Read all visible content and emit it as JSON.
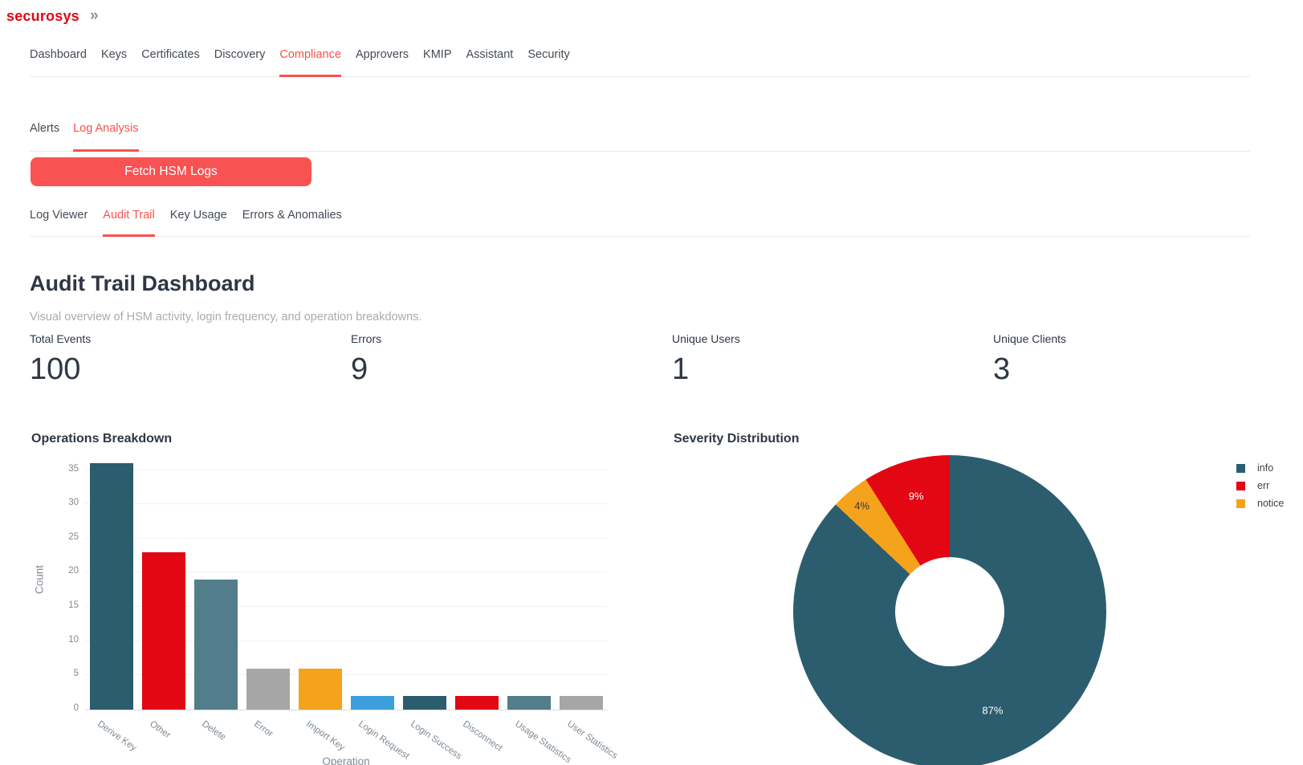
{
  "brand": {
    "logo_text": "securosys",
    "collapse_icon": "»"
  },
  "main_nav": {
    "items": [
      {
        "label": "Dashboard",
        "active": false
      },
      {
        "label": "Keys",
        "active": false
      },
      {
        "label": "Certificates",
        "active": false
      },
      {
        "label": "Discovery",
        "active": false
      },
      {
        "label": "Compliance",
        "active": true
      },
      {
        "label": "Approvers",
        "active": false
      },
      {
        "label": "KMIP",
        "active": false
      },
      {
        "label": "Assistant",
        "active": false
      },
      {
        "label": "Security",
        "active": false
      }
    ]
  },
  "sub_nav": {
    "items": [
      {
        "label": "Alerts",
        "active": false
      },
      {
        "label": "Log Analysis",
        "active": true
      }
    ]
  },
  "actions": {
    "fetch_button_label": "Fetch HSM Logs"
  },
  "log_tabs": {
    "items": [
      {
        "label": "Log Viewer",
        "active": false
      },
      {
        "label": "Audit Trail",
        "active": true
      },
      {
        "label": "Key Usage",
        "active": false
      },
      {
        "label": "Errors & Anomalies",
        "active": false
      }
    ]
  },
  "page_header": {
    "title": "Audit Trail Dashboard",
    "subtitle": "Visual overview of HSM activity, login frequency, and operation breakdowns."
  },
  "stats": [
    {
      "label": "Total Events",
      "value": "100"
    },
    {
      "label": "Errors",
      "value": "9"
    },
    {
      "label": "Unique Users",
      "value": "1"
    },
    {
      "label": "Unique Clients",
      "value": "3"
    }
  ],
  "colors": {
    "accent": "#f7524d",
    "brand_red": "#e30613",
    "teal": "#2b5d6f",
    "slate": "#527d8a",
    "gray": "#a6a6a6",
    "orange": "#f5a21c",
    "blue": "#3d9edd"
  },
  "chart_data": [
    {
      "type": "bar",
      "title": "Operations Breakdown",
      "xlabel": "Operation",
      "ylabel": "Count",
      "categories": [
        "Derive Key",
        "Other",
        "Delete",
        "Error",
        "Import Key",
        "Login Request",
        "Login Success",
        "Disconnect",
        "Usage Statistics",
        "User Statistics"
      ],
      "values": [
        36,
        23,
        19,
        6,
        6,
        2,
        2,
        2,
        2,
        2
      ],
      "bar_colors": [
        "#2b5d6f",
        "#e30613",
        "#527d8a",
        "#a6a6a6",
        "#f5a21c",
        "#3d9edd",
        "#2b5d6f",
        "#e30613",
        "#527d8a",
        "#a6a6a6"
      ],
      "ylim": [
        0,
        38
      ],
      "yticks": [
        0,
        5,
        10,
        15,
        20,
        25,
        30,
        35
      ],
      "grid": true
    },
    {
      "type": "pie",
      "title": "Severity Distribution",
      "labels": [
        "info",
        "err",
        "notice"
      ],
      "values": [
        87,
        9,
        4
      ],
      "percent_labels": [
        "87%",
        "9%",
        "4%"
      ],
      "slice_colors": [
        "#2b5d6f",
        "#e30613",
        "#f5a21c"
      ],
      "label_text_colors": [
        "#ffffff",
        "#ffffff",
        "#333a40"
      ],
      "hole_ratio": 0.35,
      "legend_position": "right",
      "clockwise_order": [
        0,
        2,
        1
      ],
      "label_radius_ratios": [
        0.69,
        0.77,
        0.88
      ]
    }
  ]
}
